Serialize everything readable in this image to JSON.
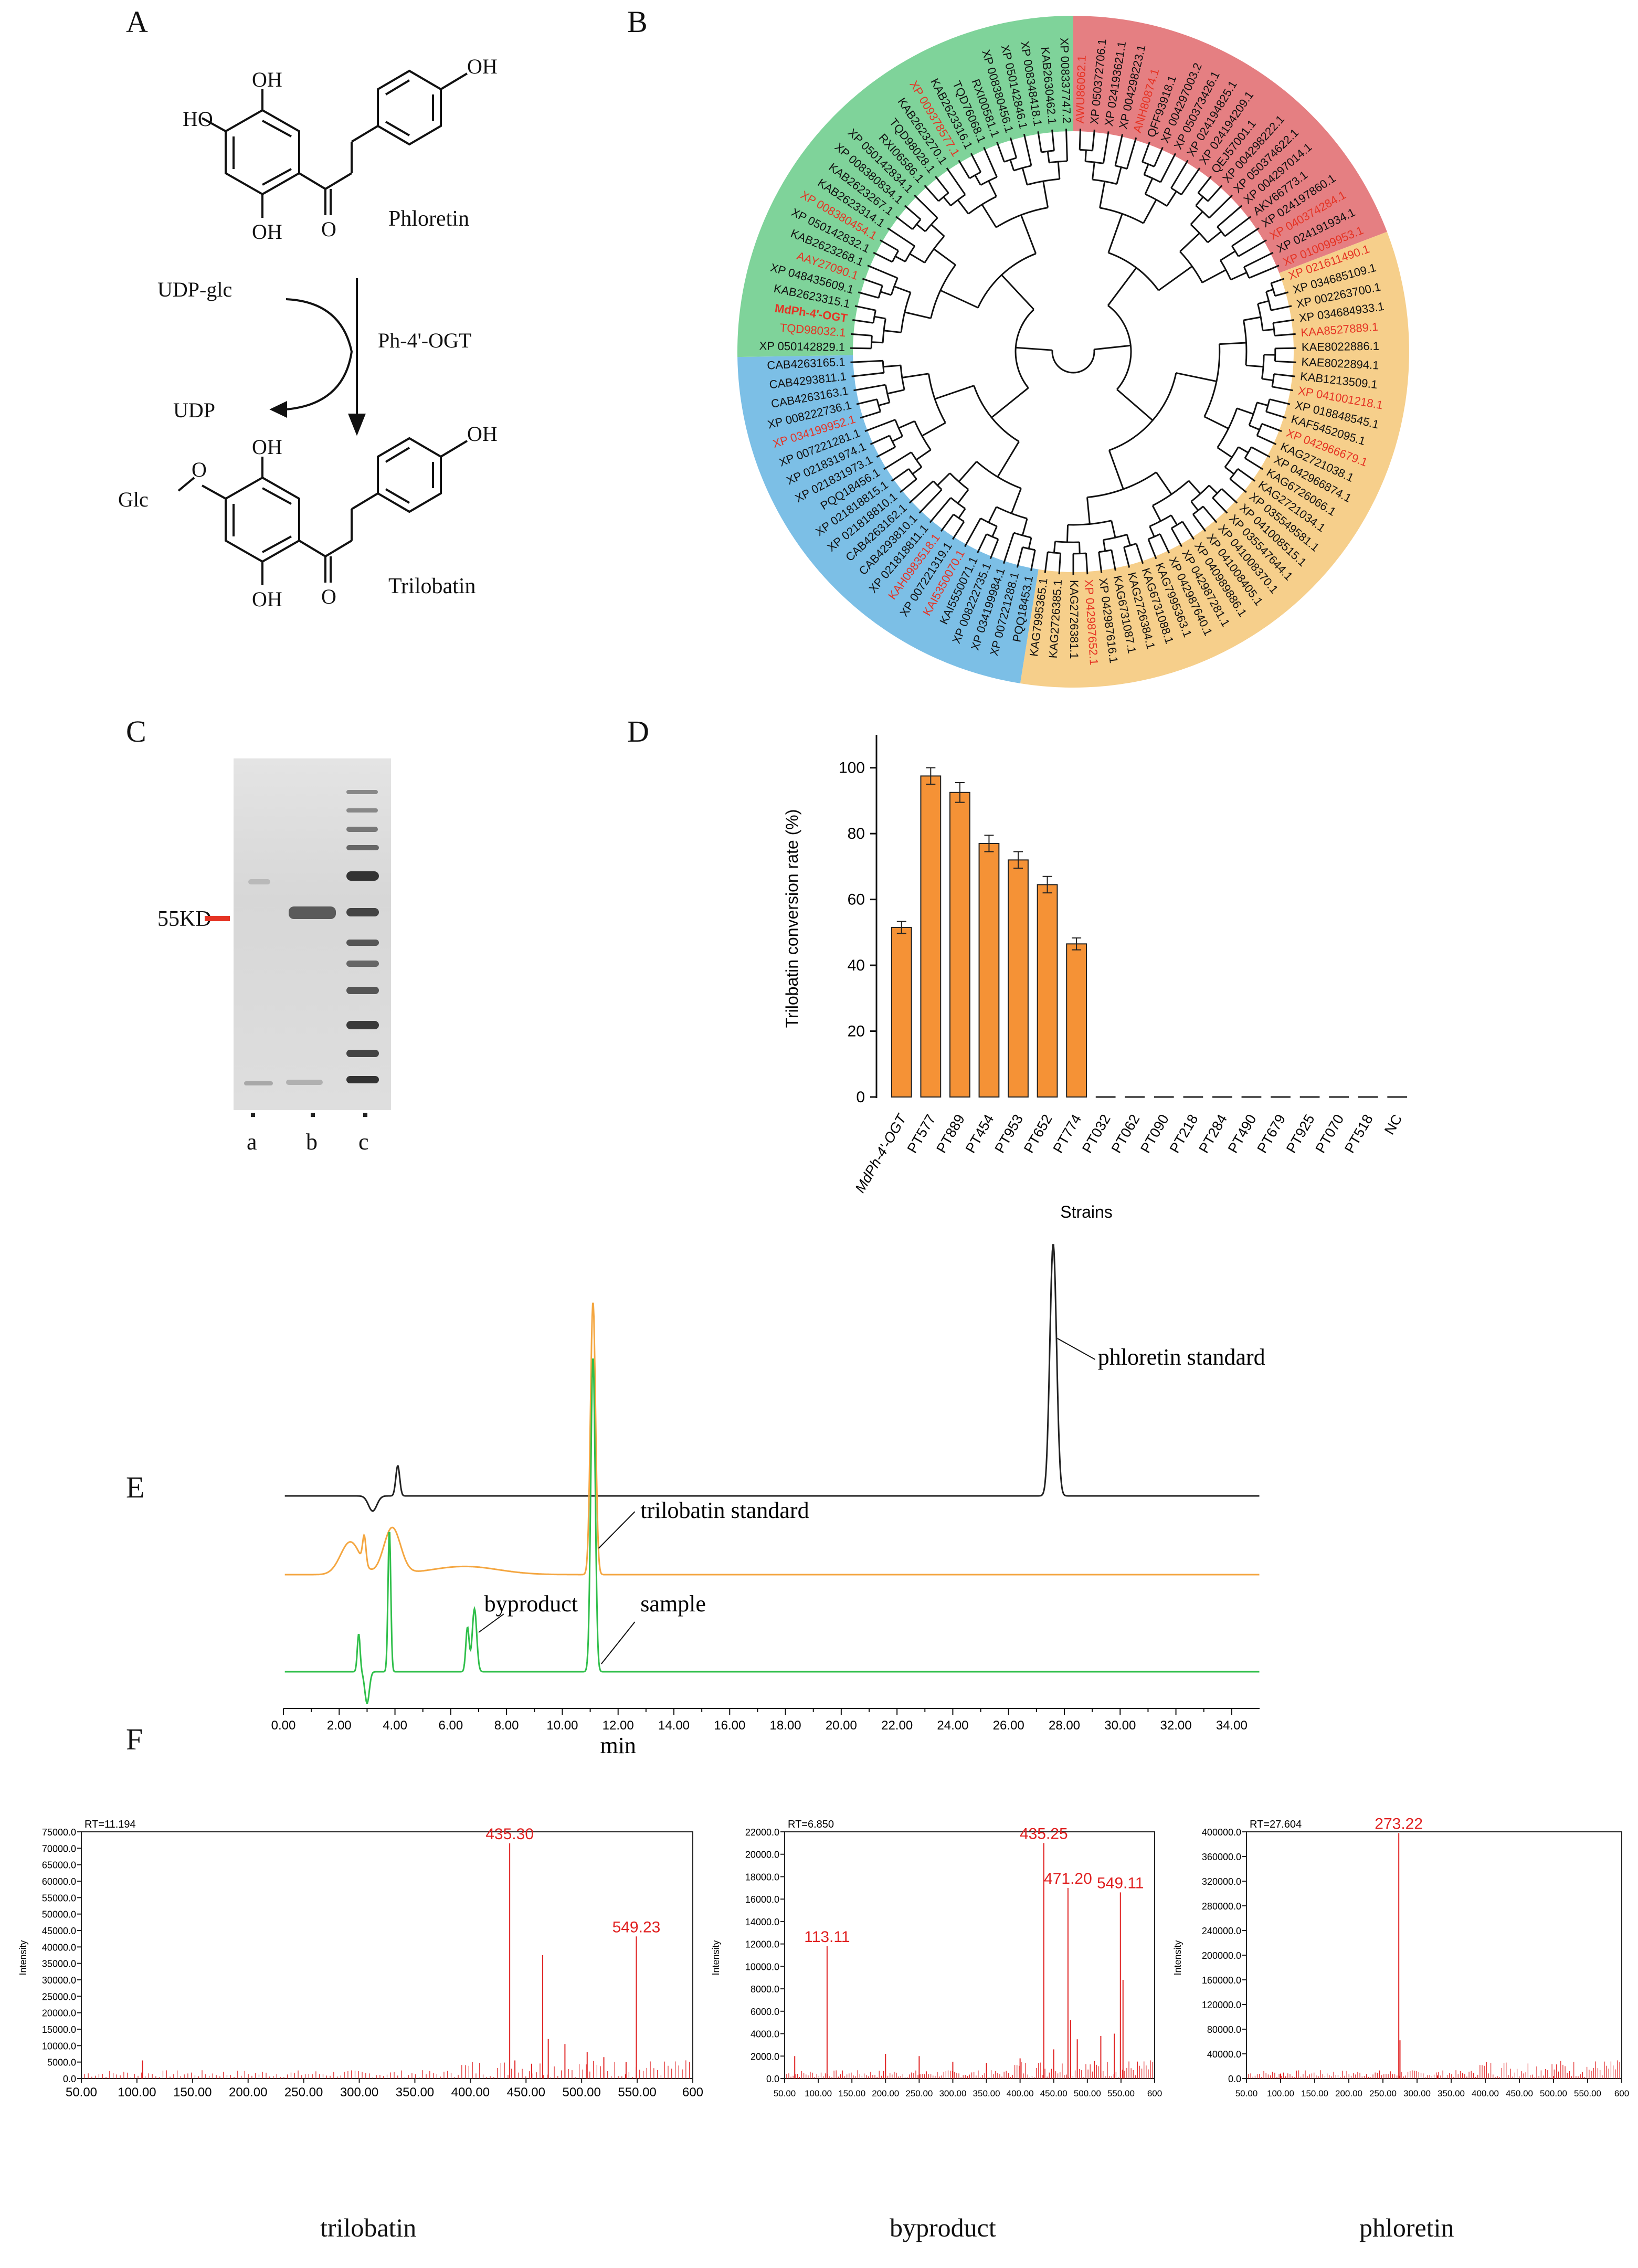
{
  "panels": {
    "A": "A",
    "B": "B",
    "C": "C",
    "D": "D",
    "E": "E",
    "F": "F"
  },
  "panel_a": {
    "phloretin_label": "Phloretin",
    "trilobatin_label": "Trilobatin",
    "donor": "UDP-glc",
    "enzyme": "Ph-4'-OGT",
    "released": "UDP",
    "oh": "OH",
    "ho": "HO",
    "glc_o": "Glc",
    "o": "O"
  },
  "panel_b": {
    "red_clade_color": "#e57f82",
    "green_clade_color": "#7fd39a",
    "blue_clade_color": "#7cbfe6",
    "orange_clade_color": "#f6cf8b",
    "highlight_color": "#e53324",
    "tips": [
      {
        "label": "AWU86062.1",
        "red": true
      },
      {
        "label": "XP 050372706.1",
        "red": false
      },
      {
        "label": "XP 024193621.1",
        "red": false
      },
      {
        "label": "XP 004298223.1",
        "red": false
      },
      {
        "label": "ANH80874.1",
        "red": true
      },
      {
        "label": "QFF93918.1",
        "red": false
      },
      {
        "label": "XP 004297003.2",
        "red": false
      },
      {
        "label": "XP 050373426.1",
        "red": false
      },
      {
        "label": "XP 024194825.1",
        "red": false
      },
      {
        "label": "XP 024194209.1",
        "red": false
      },
      {
        "label": "QEJ57001.1",
        "red": false
      },
      {
        "label": "XP 004298222.1",
        "red": false
      },
      {
        "label": "XP 050374622.1",
        "red": false
      },
      {
        "label": "XP 004297014.1",
        "red": false
      },
      {
        "label": "AKV66773.1",
        "red": false
      },
      {
        "label": "XP 024197860.1",
        "red": false
      },
      {
        "label": "XP 040374284.1",
        "red": true
      },
      {
        "label": "XP 024191934.1",
        "red": false
      },
      {
        "label": "XP 010099953.1",
        "red": true
      },
      {
        "label": "XP 021611490.1",
        "red": true
      },
      {
        "label": "XP 034685109.1",
        "red": false
      },
      {
        "label": "XP 002263700.1",
        "red": false
      },
      {
        "label": "XP 034684933.1",
        "red": false
      },
      {
        "label": "KAA8527889.1",
        "red": true
      },
      {
        "label": "KAE8022886.1",
        "red": false
      },
      {
        "label": "KAE8022894.1",
        "red": false
      },
      {
        "label": "KAB1213509.1",
        "red": false
      },
      {
        "label": "XP 041001218.1",
        "red": true
      },
      {
        "label": "XP 018848545.1",
        "red": false
      },
      {
        "label": "KAF5452095.1",
        "red": false
      },
      {
        "label": "XP 042966679.1",
        "red": true
      },
      {
        "label": "KAG2721038.1",
        "red": false
      },
      {
        "label": "XP 042966874.1",
        "red": false
      },
      {
        "label": "KAG6726066.1",
        "red": false
      },
      {
        "label": "KAG2721034.1",
        "red": false
      },
      {
        "label": "XP 035549581.1",
        "red": false
      },
      {
        "label": "XP 041008515.1",
        "red": false
      },
      {
        "label": "XP 035547644.1",
        "red": false
      },
      {
        "label": "XP 041008370.1",
        "red": false
      },
      {
        "label": "XP 041008405.1",
        "red": false
      },
      {
        "label": "XP 040989886.1",
        "red": false
      },
      {
        "label": "XP 042987281.1",
        "red": false
      },
      {
        "label": "XP 042987640.1",
        "red": false
      },
      {
        "label": "KAG7995363.1",
        "red": false
      },
      {
        "label": "KAG6731088.1",
        "red": false
      },
      {
        "label": "KAG2726384.1",
        "red": false
      },
      {
        "label": "KAG6731087.1",
        "red": false
      },
      {
        "label": "XP 042987616.1",
        "red": false
      },
      {
        "label": "XP 042987652.1",
        "red": true
      },
      {
        "label": "KAG2726381.1",
        "red": false
      },
      {
        "label": "KAG2726385.1",
        "red": false
      },
      {
        "label": "KAG7995365.1",
        "red": false
      },
      {
        "label": "PQQ18453.1",
        "red": false
      },
      {
        "label": "XP 007221288.1",
        "red": false
      },
      {
        "label": "XP 034199984.1",
        "red": false
      },
      {
        "label": "XP 008222735.1",
        "red": false
      },
      {
        "label": "KAI5550071.1",
        "red": false
      },
      {
        "label": "KAI5350070.1",
        "red": true
      },
      {
        "label": "XP 007221319.1",
        "red": false
      },
      {
        "label": "KAH0983518.1",
        "red": true
      },
      {
        "label": "XP 021818811.1",
        "red": false
      },
      {
        "label": "CAB4293810.1",
        "red": false
      },
      {
        "label": "CAB4263162.1",
        "red": false
      },
      {
        "label": "XP 021818810.1",
        "red": false
      },
      {
        "label": "XP 021818815.1",
        "red": false
      },
      {
        "label": "PQQ18456.1",
        "red": false
      },
      {
        "label": "XP 021831973.1",
        "red": false
      },
      {
        "label": "XP 021831974.1",
        "red": false
      },
      {
        "label": "XP 007221281.1",
        "red": false
      },
      {
        "label": "XP 034199952.1",
        "red": true
      },
      {
        "label": "XP 008222736.1",
        "red": false
      },
      {
        "label": "CAB4263163.1",
        "red": false
      },
      {
        "label": "CAB4293811.1",
        "red": false
      },
      {
        "label": "CAB4263165.1",
        "red": false
      },
      {
        "label": "XP 050142829.1",
        "red": false
      },
      {
        "label": "TQD98032.1",
        "red": true
      },
      {
        "label": "MdPh-4'-OGT",
        "red": true
      },
      {
        "label": "KAB2623315.1",
        "red": false
      },
      {
        "label": "XP 048435609.1",
        "red": false
      },
      {
        "label": "AAY27090.1",
        "red": true
      },
      {
        "label": "KAB2623268.1",
        "red": false
      },
      {
        "label": "XP 050142832.1",
        "red": false
      },
      {
        "label": "XP 008380454.1",
        "red": true
      },
      {
        "label": "KAB2623314.1",
        "red": false
      },
      {
        "label": "KAB2623267.1",
        "red": false
      },
      {
        "label": "XP 008380834.1",
        "red": false
      },
      {
        "label": "XP 050142834.1",
        "red": false
      },
      {
        "label": "RXI06586.1",
        "red": false
      },
      {
        "label": "TQD98028.1",
        "red": false
      },
      {
        "label": "KAB2623270.1",
        "red": false
      },
      {
        "label": "XP 009378577.1",
        "red": true
      },
      {
        "label": "KAB2623316.1",
        "red": false
      },
      {
        "label": "TQD76068.1",
        "red": false
      },
      {
        "label": "RXI00581.1",
        "red": false
      },
      {
        "label": "XP 008380456.1",
        "red": false
      },
      {
        "label": "XP 050142846.1",
        "red": false
      },
      {
        "label": "XP 008348418.1",
        "red": false
      },
      {
        "label": "KAB2630462.1",
        "red": false
      },
      {
        "label": "XP 008337747.2",
        "red": false
      }
    ]
  },
  "panel_c": {
    "marker": "55KD",
    "lanes": [
      "a",
      "b",
      "c"
    ]
  },
  "chart_data": [
    {
      "type": "bar",
      "panel": "D",
      "ylabel": "Trilobatin conversion rate (%)",
      "xlabel": "Strains",
      "ylim": [
        0,
        110
      ],
      "yticks": [
        0,
        20,
        40,
        60,
        80,
        100
      ],
      "bar_color": "#f59236",
      "categories": [
        "MdPh-4'-OGT",
        "PT577",
        "PT889",
        "PT454",
        "PT953",
        "PT652",
        "PT774",
        "PT032",
        "PT062",
        "PT090",
        "PT218",
        "PT284",
        "PT490",
        "PT679",
        "PT925",
        "PT070",
        "PT518",
        "NC"
      ],
      "values": [
        51.5,
        97.5,
        92.5,
        77.0,
        72.0,
        64.5,
        46.5,
        0,
        0,
        0,
        0,
        0,
        0,
        0,
        0,
        0,
        0,
        0
      ],
      "errors": [
        1.8,
        2.5,
        3.0,
        2.5,
        2.5,
        2.5,
        1.8,
        0,
        0,
        0,
        0,
        0,
        0,
        0,
        0,
        0,
        0,
        0
      ]
    },
    {
      "type": "line",
      "panel": "E",
      "xlabel": "min",
      "xlim": [
        0,
        35
      ],
      "xticks": [
        "0.00",
        "2.00",
        "4.00",
        "6.00",
        "8.00",
        "10.00",
        "12.00",
        "14.00",
        "16.00",
        "18.00",
        "20.00",
        "22.00",
        "24.00",
        "26.00",
        "28.00",
        "30.00",
        "32.00",
        "34.00"
      ],
      "series": [
        {
          "name": "phloretin standard",
          "color": "#222222",
          "peaks": [
            {
              "t": 27.6,
              "h": 1.0,
              "w": 0.12
            },
            {
              "t": 4.1,
              "h": 0.12,
              "w": 0.07
            },
            {
              "t": 3.2,
              "h": -0.06,
              "w": 0.15
            }
          ]
        },
        {
          "name": "trilobatin standard",
          "color": "#f4a640",
          "peaks": [
            {
              "t": 11.1,
              "h": 1.0,
              "w": 0.09
            },
            {
              "t": 2.4,
              "h": 0.12,
              "w": 0.35
            },
            {
              "t": 3.9,
              "h": 0.17,
              "w": 0.3
            },
            {
              "t": 2.9,
              "h": 0.1,
              "w": 0.06
            },
            {
              "t": 6.5,
              "h": 0.03,
              "w": 1.2
            }
          ]
        },
        {
          "name": "sample",
          "color": "#2fbf4a",
          "peaks": [
            {
              "t": 11.1,
              "h": 1.0,
              "w": 0.08
            },
            {
              "t": 3.8,
              "h": 0.45,
              "w": 0.05
            },
            {
              "t": 6.85,
              "h": 0.2,
              "w": 0.08
            },
            {
              "t": 6.6,
              "h": 0.14,
              "w": 0.06
            },
            {
              "t": 2.7,
              "h": 0.12,
              "w": 0.05
            },
            {
              "t": 3.0,
              "h": -0.1,
              "w": 0.08
            }
          ]
        }
      ],
      "annotations": [
        "phloretin standard",
        "trilobatin standard",
        "byproduct",
        "sample"
      ]
    },
    {
      "type": "bar",
      "panel": "F",
      "title": "trilobatin",
      "rt": "RT=11.194",
      "ylabel": "Intensity",
      "xlim": [
        50,
        600
      ],
      "ylim": [
        0,
        75000
      ],
      "xticks": [
        "50.00",
        "100.00",
        "150.00",
        "200.00",
        "250.00",
        "300.00",
        "350.00",
        "400.00",
        "450.00",
        "500.00",
        "550.00",
        "600"
      ],
      "yticks": [
        "0.0",
        "5000.0",
        "10000.0",
        "15000.0",
        "20000.0",
        "25000.0",
        "30000.0",
        "35000.0",
        "40000.0",
        "45000.0",
        "50000.0",
        "55000.0",
        "60000.0",
        "65000.0",
        "70000.0",
        "75000.0"
      ],
      "peaks": [
        [
          435.3,
          71500
        ],
        [
          549.23,
          43200
        ],
        [
          465,
          37500
        ],
        [
          470,
          12000
        ],
        [
          485,
          10500
        ],
        [
          505,
          8000
        ],
        [
          440,
          5500
        ],
        [
          105,
          5500
        ],
        [
          520,
          6500
        ],
        [
          540,
          5000
        ],
        [
          455,
          4500
        ]
      ],
      "labels": [
        {
          "mz": 435.3,
          "text": "435.30"
        },
        {
          "mz": 549.23,
          "text": "549.23"
        }
      ]
    },
    {
      "type": "bar",
      "panel": "F",
      "title": "byproduct",
      "rt": "RT=6.850",
      "ylabel": "Intensity",
      "xlim": [
        50,
        600
      ],
      "ylim": [
        0,
        22000
      ],
      "xticks": [
        "50.00",
        "100.00",
        "150.00",
        "200.00",
        "250.00",
        "300.00",
        "350.00",
        "400.00",
        "450.00",
        "500.00",
        "550.00",
        "600"
      ],
      "yticks": [
        "0.0",
        "2000.0",
        "4000.0",
        "6000.0",
        "8000.0",
        "10000.0",
        "12000.0",
        "14000.0",
        "16000.0",
        "18000.0",
        "20000.0",
        "22000.0"
      ],
      "peaks": [
        [
          113.11,
          11800
        ],
        [
          435.25,
          21000
        ],
        [
          471.2,
          17000
        ],
        [
          549.11,
          16600
        ],
        [
          553,
          8800
        ],
        [
          475,
          5200
        ],
        [
          485,
          3500
        ],
        [
          520,
          3800
        ],
        [
          540,
          4000
        ],
        [
          200,
          2200
        ],
        [
          250,
          2000
        ],
        [
          300,
          1500
        ],
        [
          350,
          1400
        ],
        [
          400,
          1800
        ],
        [
          450,
          2600
        ],
        [
          65,
          2000
        ]
      ],
      "labels": [
        {
          "mz": 113.11,
          "text": "113.11"
        },
        {
          "mz": 435.25,
          "text": "435.25"
        },
        {
          "mz": 471.2,
          "text": "471.20"
        },
        {
          "mz": 549.11,
          "text": "549.11"
        }
      ]
    },
    {
      "type": "bar",
      "panel": "F",
      "title": "phloretin",
      "rt": "RT=27.604",
      "ylabel": "Intensity",
      "xlim": [
        50,
        600
      ],
      "ylim": [
        0,
        400000
      ],
      "xticks": [
        "50.00",
        "100.00",
        "150.00",
        "200.00",
        "250.00",
        "300.00",
        "350.00",
        "400.00",
        "450.00",
        "500.00",
        "550.00",
        "600"
      ],
      "yticks": [
        "0.0",
        "40000.0",
        "80000.0",
        "120000.0",
        "160000.0",
        "200000.0",
        "240000.0",
        "280000.0",
        "320000.0",
        "360000.0",
        "400000.0"
      ],
      "peaks": [
        [
          273.22,
          398000
        ],
        [
          275,
          62000
        ],
        [
          100,
          8000
        ],
        [
          330,
          5000
        ],
        [
          500,
          4000
        ]
      ],
      "labels": [
        {
          "mz": 273.22,
          "text": "273.22"
        }
      ]
    }
  ]
}
